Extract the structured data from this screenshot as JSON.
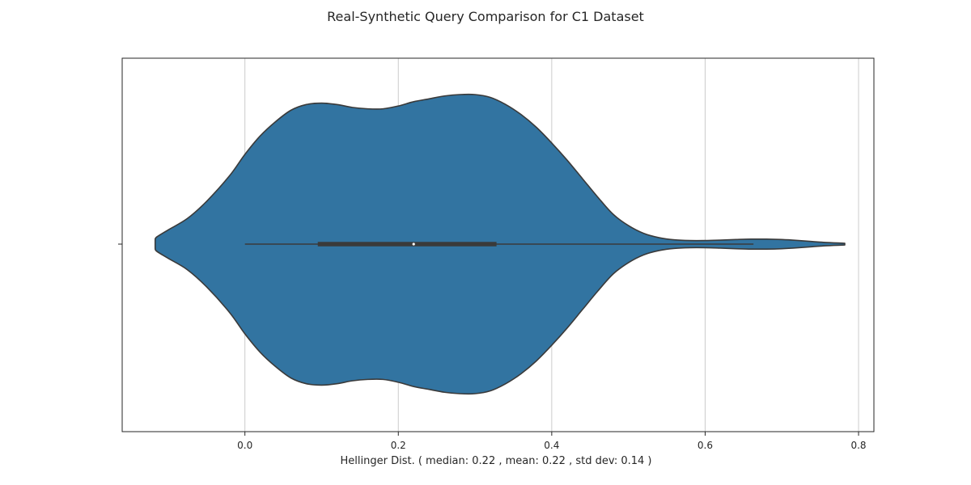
{
  "chart_data": {
    "type": "violin",
    "title": "Real-Synthetic Query Comparison for C1 Dataset",
    "xlabel": "Hellinger Dist. ( median: 0.22 , mean: 0.22 , std dev: 0.14 )",
    "ylabel": "",
    "orientation": "horizontal",
    "xlim": [
      -0.16,
      0.82
    ],
    "xticks": [
      0.0,
      0.2,
      0.4,
      0.6,
      0.8
    ],
    "xtick_labels": [
      "0.0",
      "0.2",
      "0.4",
      "0.6",
      "0.8"
    ],
    "grid": "vertical",
    "series": [
      {
        "kde_extent": [
          -0.117,
          0.782
        ],
        "box": {
          "whisker_low": 0.0,
          "q1": 0.095,
          "median": 0.22,
          "q3": 0.328,
          "whisker_high": 0.663
        },
        "density_profile": [
          [
            -0.117,
            0.03
          ],
          [
            -0.115,
            0.05
          ],
          [
            -0.1,
            0.1
          ],
          [
            -0.075,
            0.18
          ],
          [
            -0.05,
            0.3
          ],
          [
            -0.02,
            0.48
          ],
          [
            0.0,
            0.63
          ],
          [
            0.02,
            0.76
          ],
          [
            0.04,
            0.86
          ],
          [
            0.06,
            0.94
          ],
          [
            0.08,
            0.98
          ],
          [
            0.1,
            0.99
          ],
          [
            0.12,
            0.98
          ],
          [
            0.14,
            0.96
          ],
          [
            0.16,
            0.95
          ],
          [
            0.18,
            0.95
          ],
          [
            0.2,
            0.97
          ],
          [
            0.22,
            1.0
          ],
          [
            0.24,
            1.02
          ],
          [
            0.26,
            1.04
          ],
          [
            0.28,
            1.05
          ],
          [
            0.3,
            1.05
          ],
          [
            0.32,
            1.03
          ],
          [
            0.34,
            0.98
          ],
          [
            0.36,
            0.91
          ],
          [
            0.38,
            0.82
          ],
          [
            0.4,
            0.71
          ],
          [
            0.42,
            0.59
          ],
          [
            0.44,
            0.46
          ],
          [
            0.46,
            0.33
          ],
          [
            0.48,
            0.21
          ],
          [
            0.5,
            0.13
          ],
          [
            0.52,
            0.075
          ],
          [
            0.54,
            0.045
          ],
          [
            0.56,
            0.03
          ],
          [
            0.58,
            0.025
          ],
          [
            0.6,
            0.025
          ],
          [
            0.62,
            0.028
          ],
          [
            0.64,
            0.032
          ],
          [
            0.66,
            0.035
          ],
          [
            0.68,
            0.035
          ],
          [
            0.7,
            0.032
          ],
          [
            0.72,
            0.026
          ],
          [
            0.74,
            0.018
          ],
          [
            0.76,
            0.011
          ],
          [
            0.782,
            0.006
          ]
        ]
      }
    ],
    "colors": {
      "violin_fill": "#3274a1",
      "outline": "#3a3a3a",
      "box": "#3a3a3a",
      "median_dot": "#ffffff",
      "grid": "#cccccc",
      "frame": "#262626"
    }
  }
}
